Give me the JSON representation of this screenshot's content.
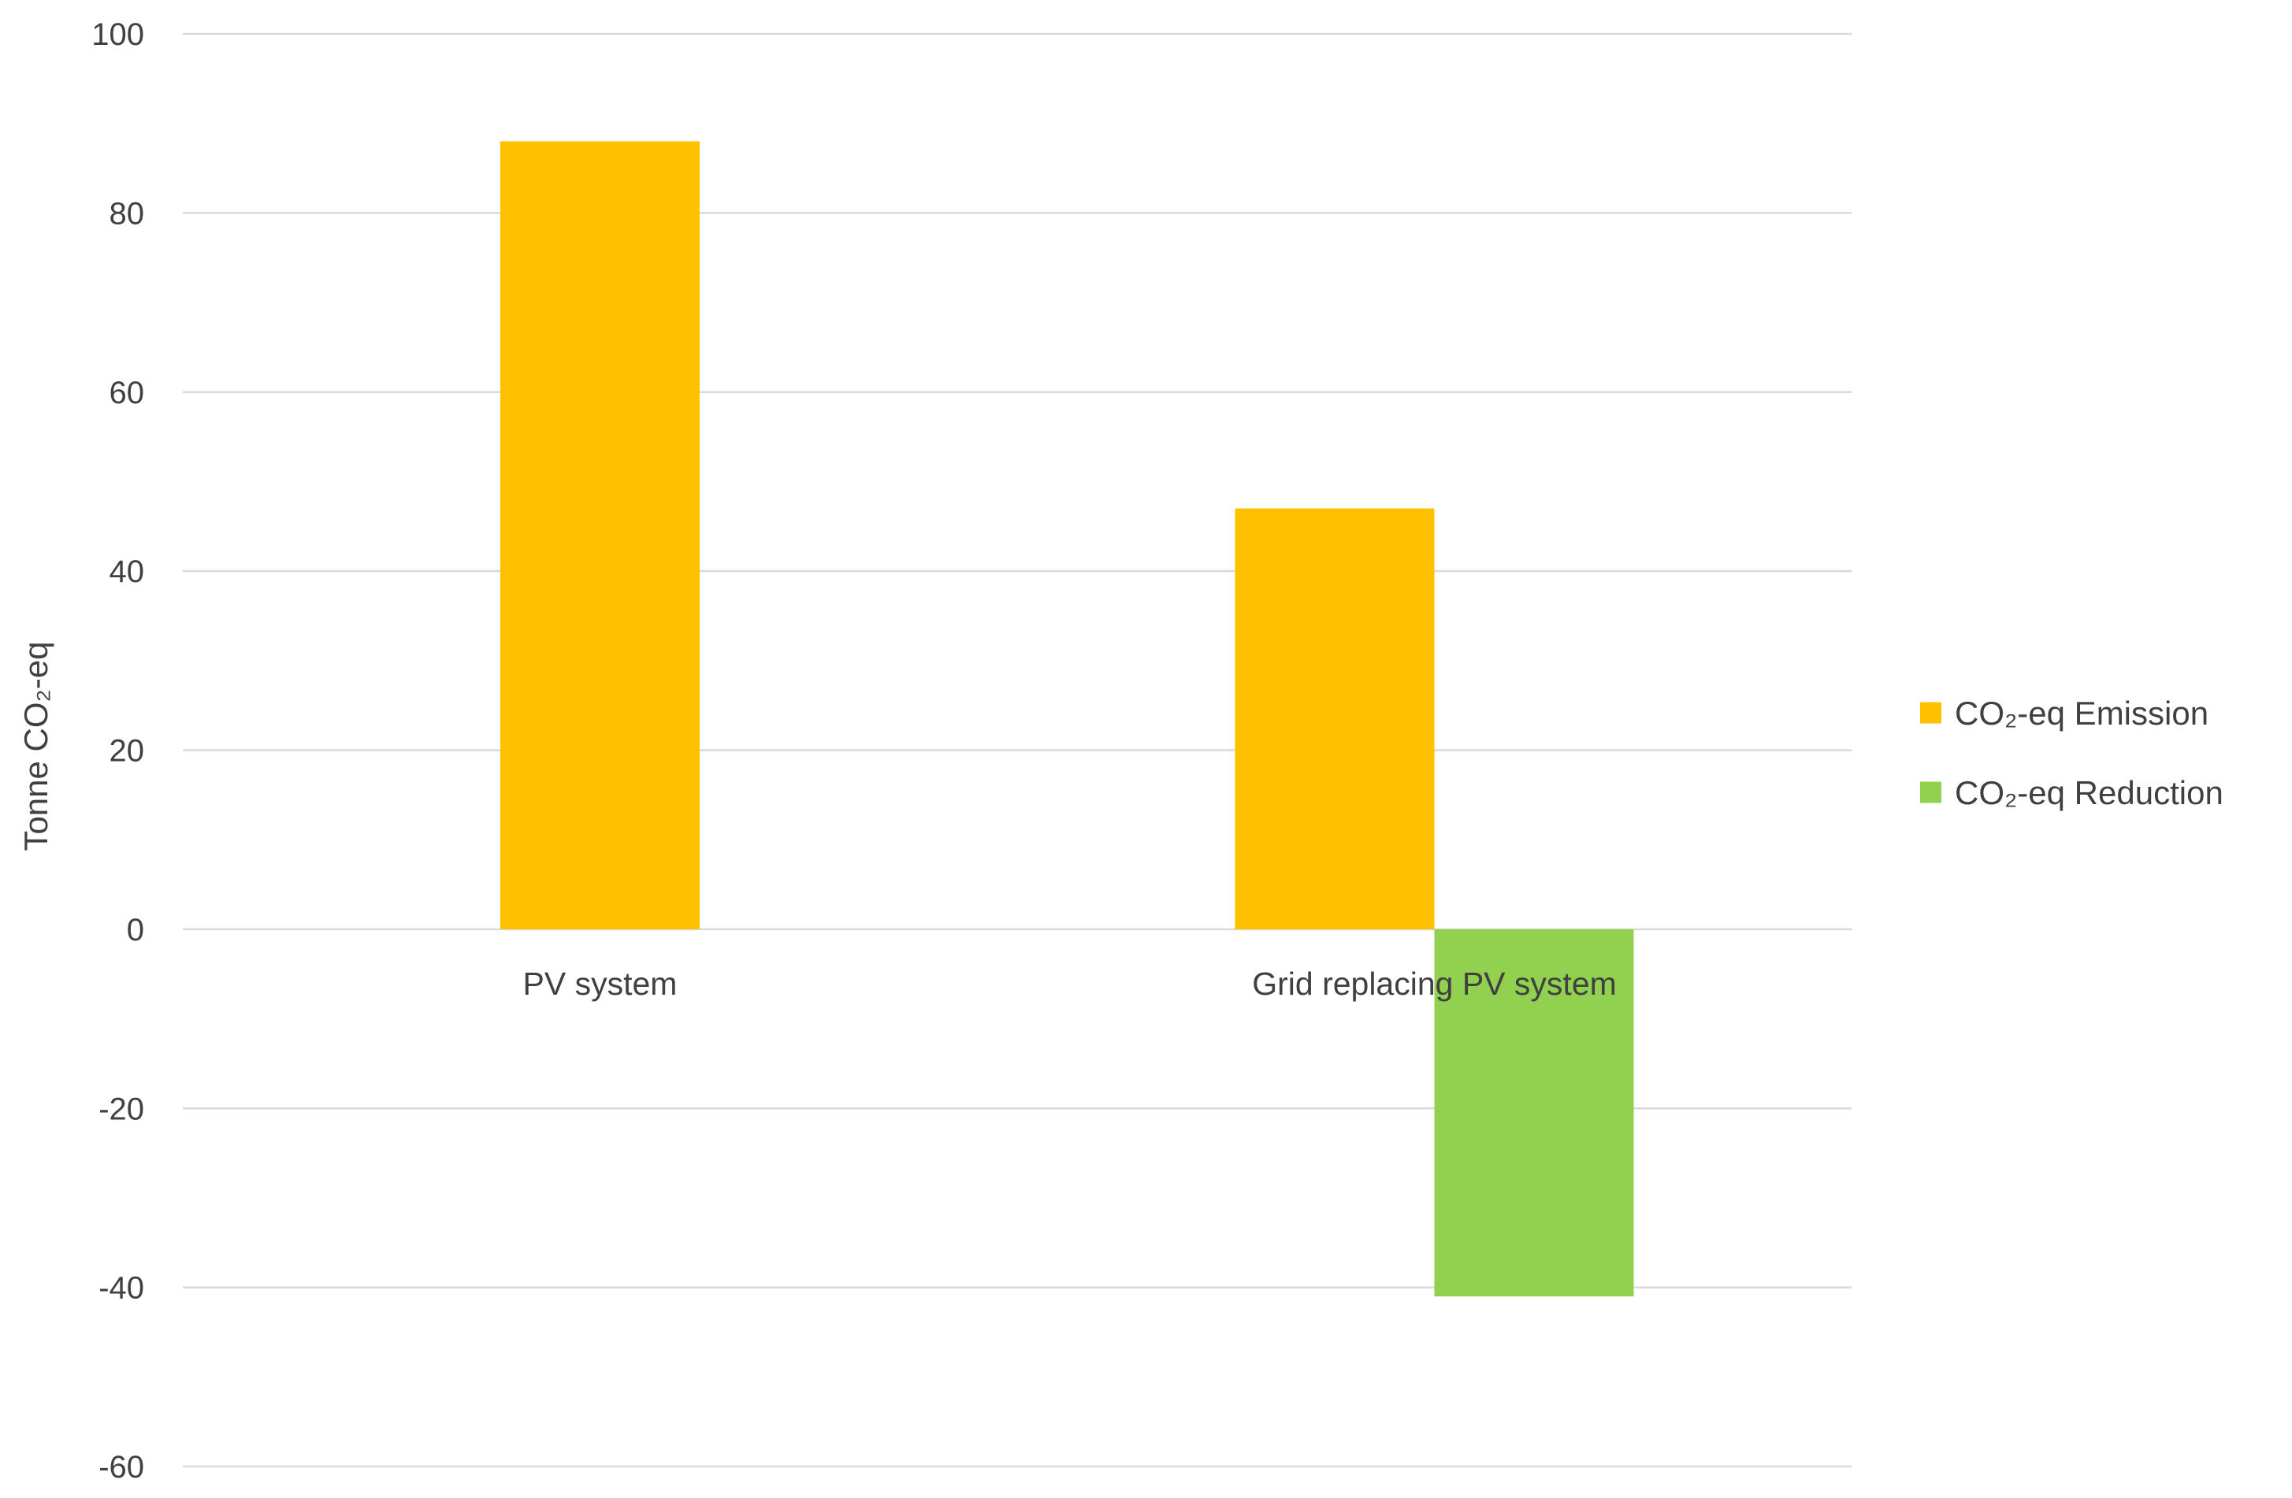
{
  "chart_data": {
    "type": "bar",
    "title": "",
    "categories": [
      "PV system",
      "Grid replacing PV system"
    ],
    "series": [
      {
        "name": "CO₂-eq Emission",
        "values": [
          88,
          47
        ],
        "color": "#FFC000"
      },
      {
        "name": "CO₂-eq Reduction",
        "values": [
          null,
          -41
        ],
        "color": "#92D050"
      }
    ],
    "xlabel": "",
    "ylabel": "Tonne CO₂-eq",
    "ylim": [
      -60,
      100
    ],
    "yticks": [
      100,
      80,
      60,
      40,
      20,
      0,
      -20,
      -40,
      -60
    ],
    "grid": true,
    "legend_position": "right"
  }
}
